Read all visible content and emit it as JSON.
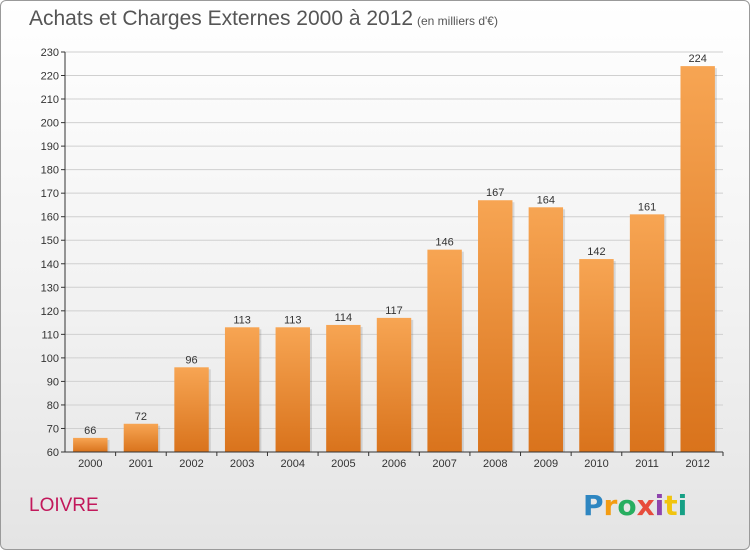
{
  "title": "Achats et Charges Externes 2000 à 2012",
  "subtitle": "(en milliers d'€)",
  "commune": "LOIVRE",
  "logo": {
    "letters": [
      "P",
      "r",
      "o",
      "x",
      "i",
      "t",
      "i"
    ],
    "colors": [
      "#2e86c1",
      "#f39c12",
      "#27ae60",
      "#e74c3c",
      "#8e44ad",
      "#f1c40f",
      "#16a085"
    ]
  },
  "colors": {
    "bar_top": "#f7a553",
    "bar_bottom": "#d9731c",
    "grid": "#d0d0d0",
    "axis": "#333333"
  },
  "chart_data": {
    "type": "bar",
    "title": "Achats et Charges Externes 2000 à 2012",
    "subtitle": "(en milliers d'€)",
    "categories": [
      "2000",
      "2001",
      "2002",
      "2003",
      "2004",
      "2005",
      "2006",
      "2007",
      "2008",
      "2009",
      "2010",
      "2011",
      "2012"
    ],
    "values": [
      66,
      72,
      96,
      113,
      113,
      114,
      117,
      146,
      167,
      164,
      142,
      161,
      224
    ],
    "ylim": [
      60,
      230
    ],
    "yticks": [
      60,
      70,
      80,
      90,
      100,
      110,
      120,
      130,
      140,
      150,
      160,
      170,
      180,
      190,
      200,
      210,
      220,
      230
    ],
    "grid": true,
    "xlabel": "",
    "ylabel": ""
  }
}
